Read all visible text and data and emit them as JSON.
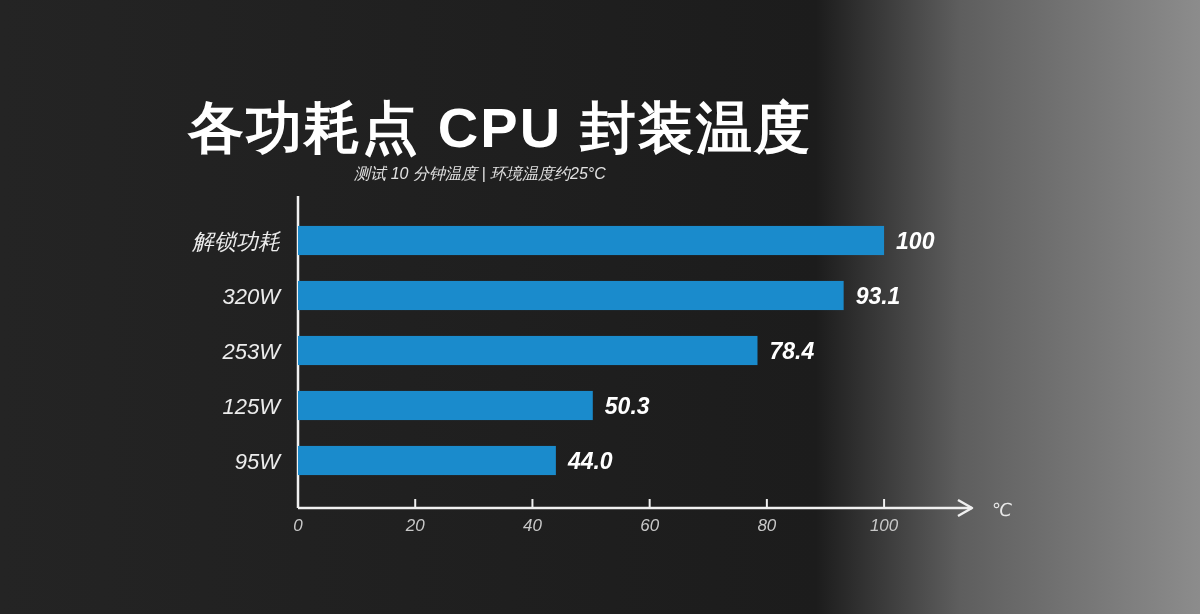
{
  "chart_data": {
    "type": "bar",
    "orientation": "horizontal",
    "title": "各功耗点 CPU 封装温度",
    "subtitle": "测试 10 分钟温度 | 环境温度约25°C",
    "xlabel": "℃",
    "categories": [
      "解锁功耗",
      "320W",
      "253W",
      "125W",
      "95W"
    ],
    "values": [
      100,
      93.1,
      78.4,
      50.3,
      44.0
    ],
    "value_labels": [
      "100",
      "93.1",
      "78.4",
      "50.3",
      "44.0"
    ],
    "color": "#1a8bcc",
    "xlim": [
      0,
      115
    ],
    "xticks": [
      0,
      20,
      40,
      60,
      80,
      100
    ]
  }
}
